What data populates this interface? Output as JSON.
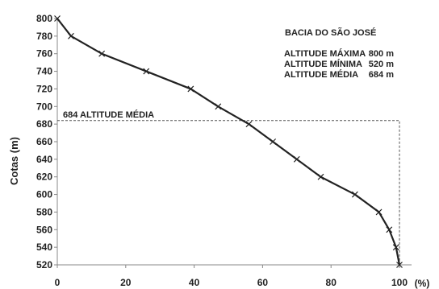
{
  "chart_data": {
    "type": "line",
    "title": "",
    "xlabel": "",
    "x_unit": "(%)",
    "ylabel": "Cotas (m)",
    "xlim": [
      0,
      100
    ],
    "ylim": [
      520,
      800
    ],
    "x_ticks": [
      0,
      20,
      40,
      60,
      80,
      100
    ],
    "y_ticks": [
      520,
      540,
      560,
      580,
      600,
      620,
      640,
      660,
      680,
      700,
      720,
      740,
      760,
      780,
      800
    ],
    "grid": false,
    "legend": "none",
    "line_color": "#222222",
    "reference_color": "#555555",
    "series": [
      {
        "x": [
          0,
          4,
          13,
          26,
          39,
          47,
          56,
          63,
          70,
          77,
          87,
          94,
          97,
          99,
          100
        ],
        "y": [
          800,
          780,
          760,
          740,
          720,
          700,
          680,
          660,
          640,
          620,
          600,
          580,
          560,
          540,
          520
        ]
      }
    ],
    "reference_line": {
      "label": "684 ALTITUDE  MÉDIA",
      "y": 684,
      "x_end": 100
    },
    "info_box": {
      "title": "BACIA DO SÃO JOSÉ",
      "rows": [
        {
          "label": "ALTITUDE MÁXIMA",
          "value": "800 m"
        },
        {
          "label": "ALTITUDE MÍNIMA",
          "value": "520 m"
        },
        {
          "label": "ALTITUDE MÉDIA",
          "value": "684 m"
        }
      ]
    }
  }
}
